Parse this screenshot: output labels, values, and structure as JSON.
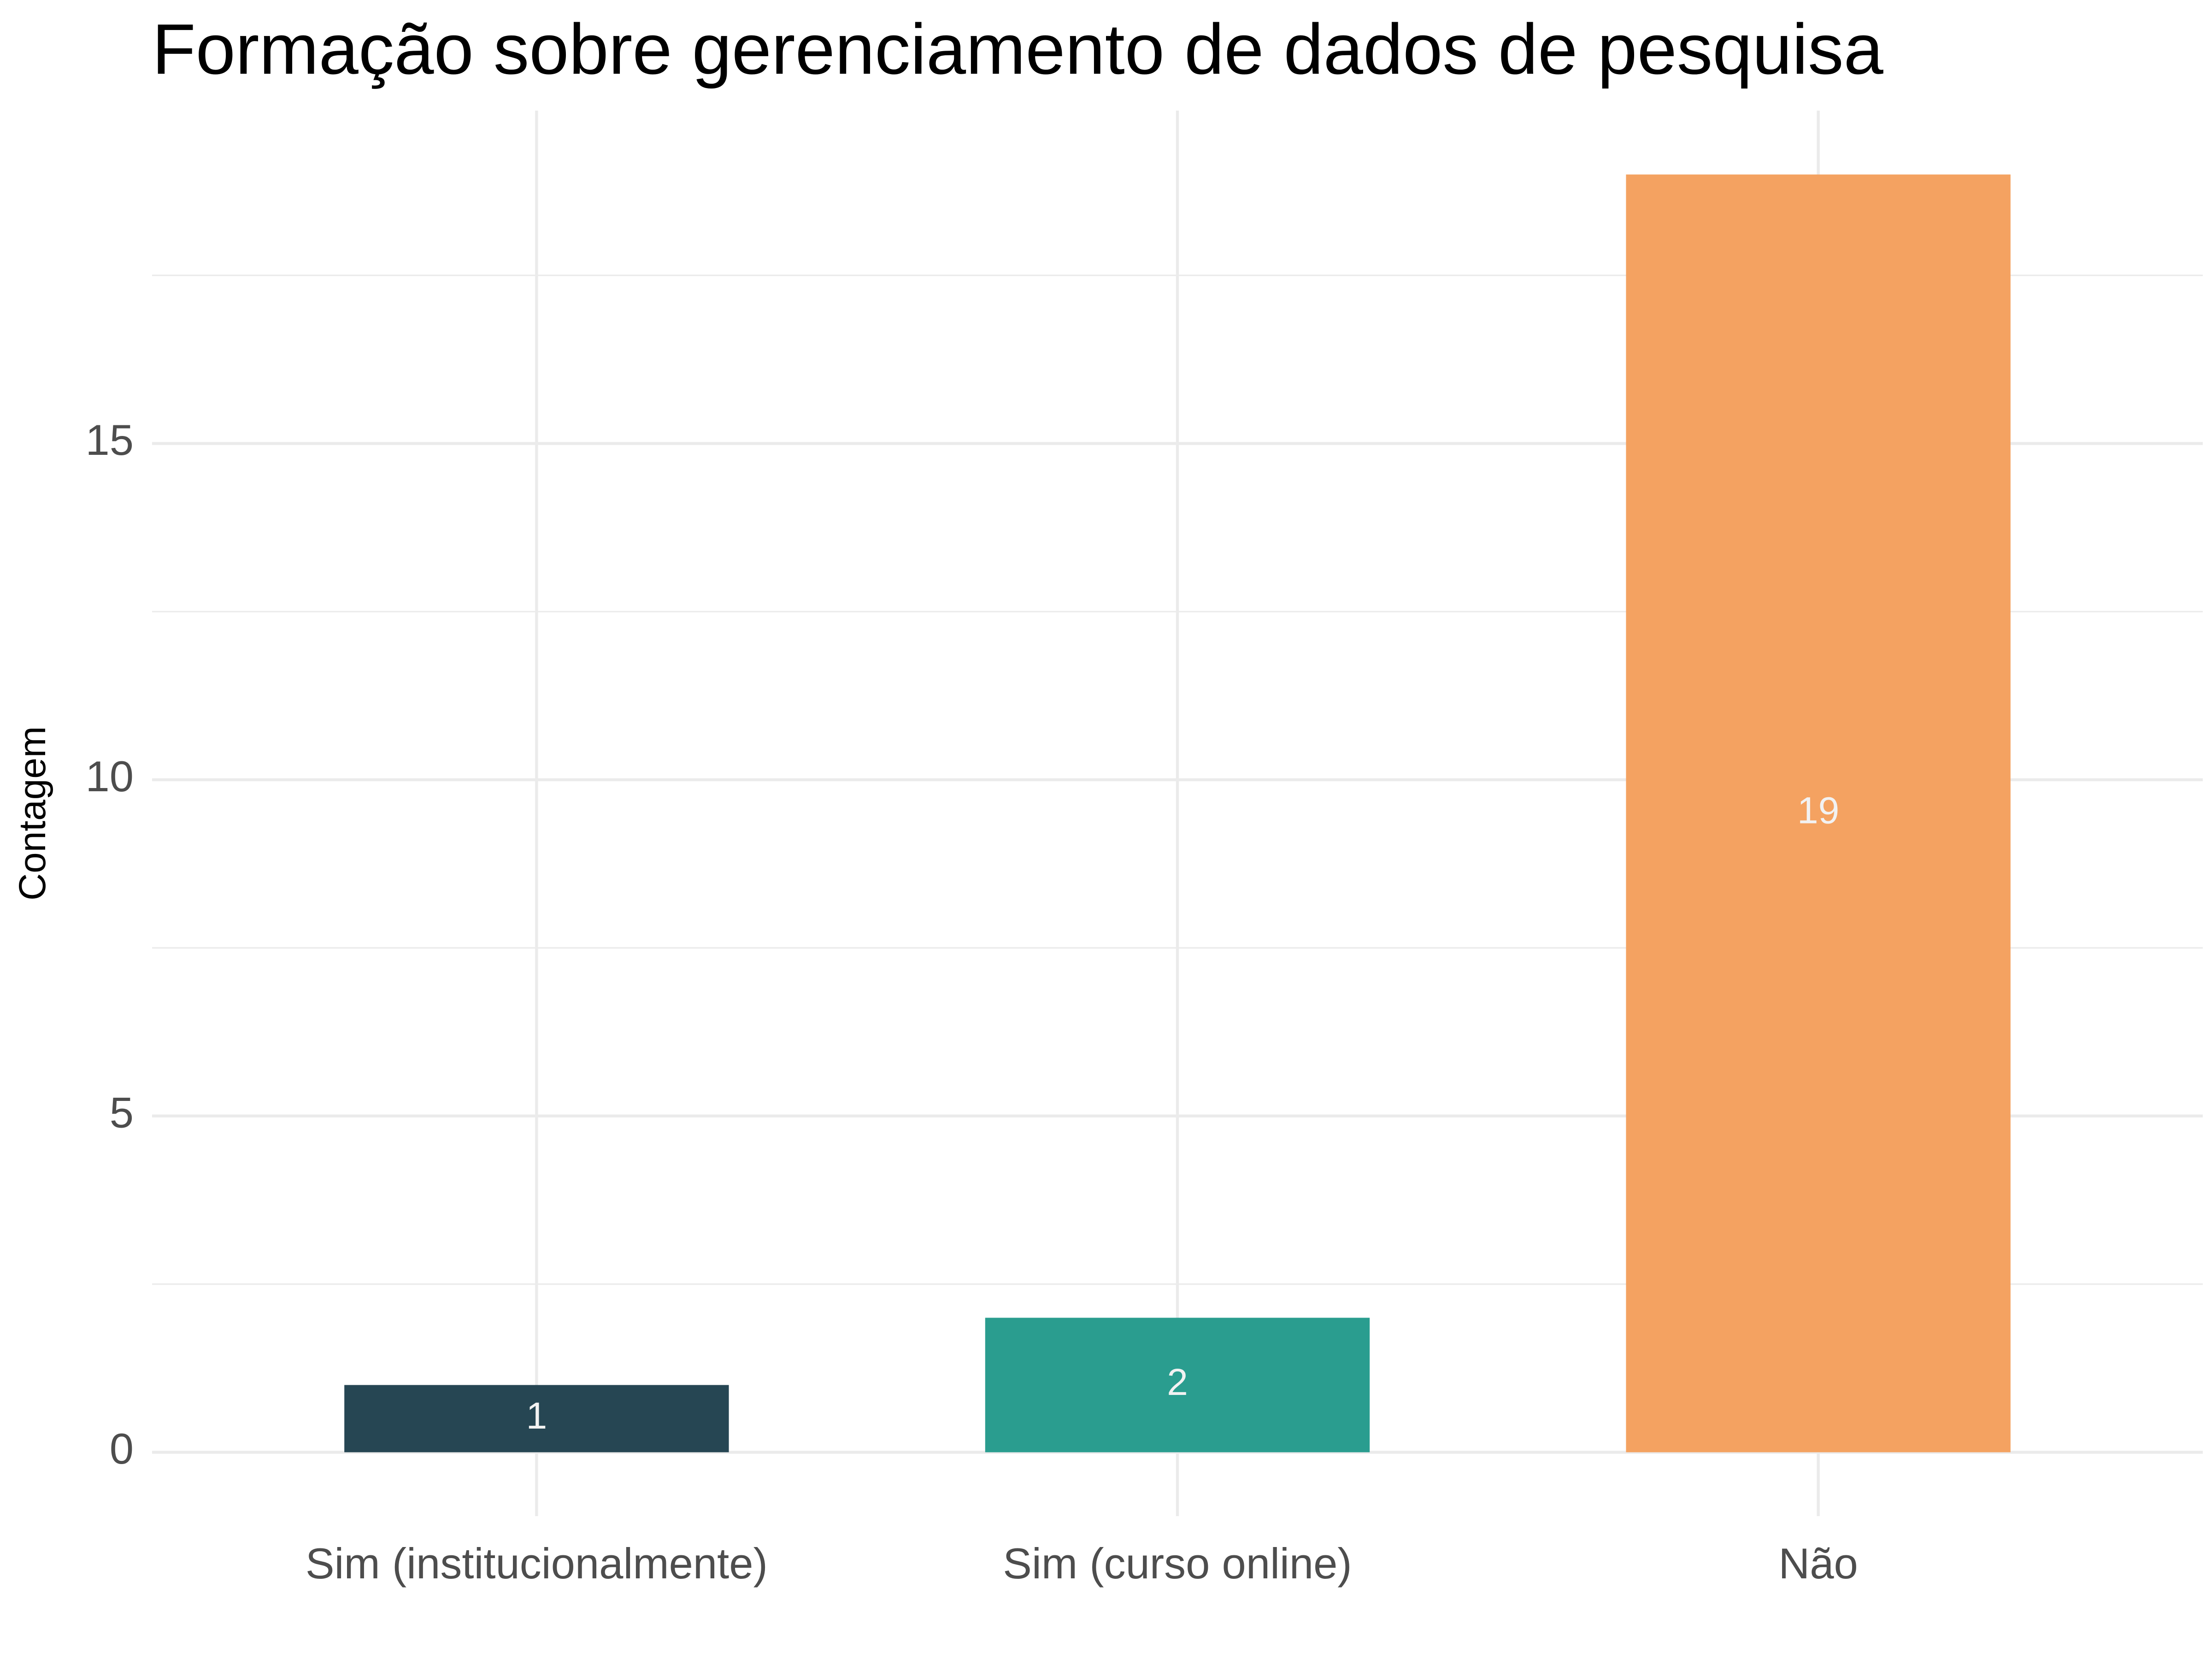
{
  "chart_data": {
    "type": "bar",
    "title": "Formação sobre gerenciamento de dados de pesquisa",
    "xlabel": "",
    "ylabel": "Contagem",
    "categories": [
      "Sim (institucionalmente)",
      "Sim (curso online)",
      "Não"
    ],
    "values": [
      1,
      2,
      19
    ],
    "data_labels": [
      "1",
      "2",
      "19"
    ],
    "colors": [
      "#264653",
      "#2a9d8f",
      "#f4a261"
    ],
    "ylim": [
      -0.95,
      19.95
    ],
    "yticks": [
      0,
      5,
      10,
      15
    ],
    "ytick_labels": [
      "0",
      "5",
      "10",
      "15"
    ],
    "grid": true,
    "legend": "none"
  }
}
